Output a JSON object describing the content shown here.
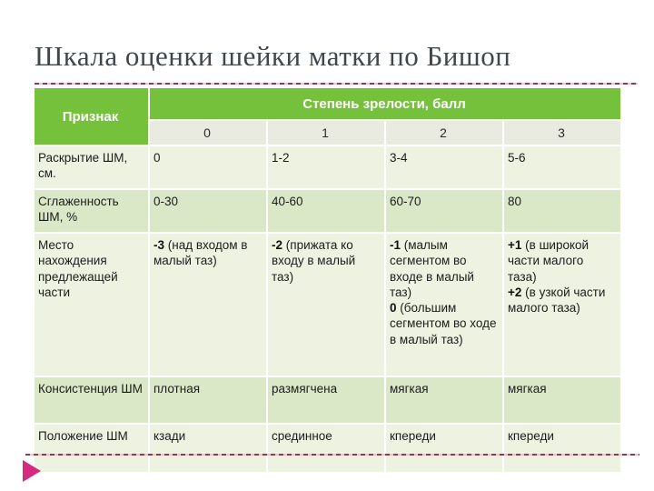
{
  "page": {
    "title": "Шкала оценки шейки матки по Бишоп"
  },
  "icons": {
    "footer_arrow": "triangle-right-icon"
  },
  "colors": {
    "header_green": "#76c13c",
    "subheader_bg": "#e9ebe0",
    "row_light": "#edf2e1",
    "row_dark": "#dae8c7",
    "dashed_line_dark": "#8f3a55",
    "dashed_line_pink": "#f2bfce",
    "arrow_pink": "#d42a80",
    "title_color": "#3f474d"
  },
  "table": {
    "feature_header": "Признак",
    "group_header": "Степень зрелости, балл",
    "score_headers": [
      "0",
      "1",
      "2",
      "3"
    ],
    "rows": [
      {
        "feature": "Раскрытие ШМ, см.",
        "cells": [
          "0",
          "1-2",
          "3-4",
          "5-6"
        ]
      },
      {
        "feature": "Сглаженность ШМ, %",
        "cells": [
          "0-30",
          "40-60",
          "60-70",
          "80"
        ]
      },
      {
        "feature": "Место нахождения предлежащей части",
        "cells_rich": [
          {
            "entries": [
              {
                "value": "-3",
                "text": " (над входом в малый таз)"
              }
            ]
          },
          {
            "entries": [
              {
                "value": "-2",
                "text": " (прижата ко входу в малый таз)"
              }
            ]
          },
          {
            "entries": [
              {
                "value": "-1",
                "text": " (малым сегментом во входе в малый таз)"
              },
              {
                "value": "0",
                "text": " (большим сегментом во ходе в малый таз)"
              }
            ]
          },
          {
            "entries": [
              {
                "value": "+1",
                "text": " (в широкой части малого таза)"
              },
              {
                "value": "+2",
                "text": " (в узкой части малого таза)"
              }
            ]
          }
        ]
      },
      {
        "feature": "Консистенция ШМ",
        "cells": [
          "плотная",
          "размягчена",
          "мягкая",
          "мягкая"
        ]
      },
      {
        "feature": "Положение ШМ",
        "cells": [
          "кзади",
          "срединное",
          "кпереди",
          "кпереди"
        ]
      }
    ]
  }
}
